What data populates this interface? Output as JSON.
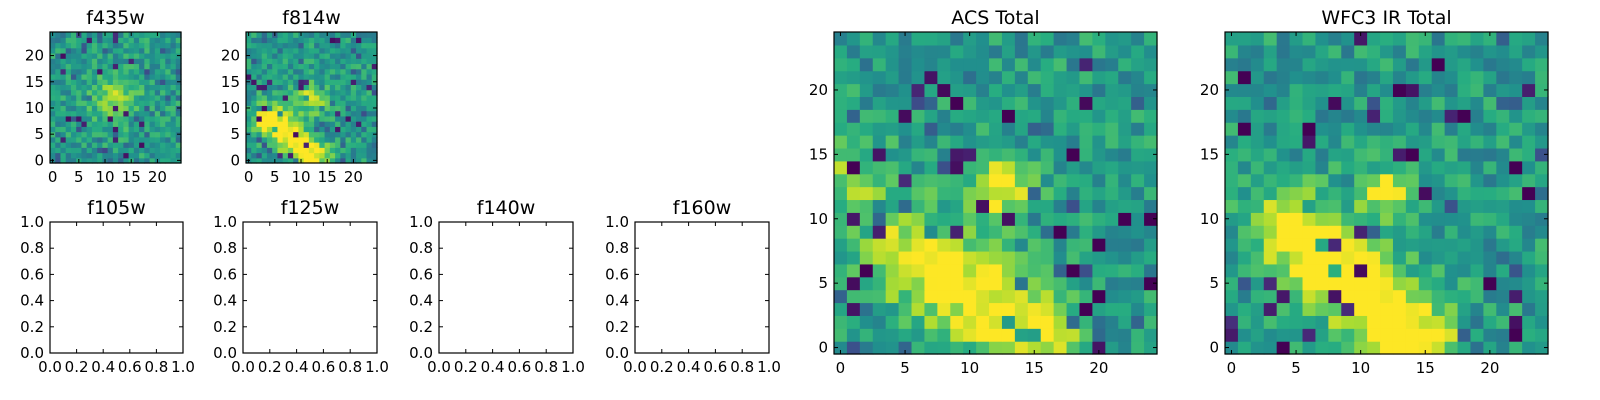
{
  "chart_data": [
    {
      "type": "heatmap",
      "title": "f435w",
      "seed": 11,
      "grid": [
        25,
        25
      ],
      "xlim": [
        -0.5,
        24.5
      ],
      "ylim": [
        -0.5,
        24.5
      ],
      "xticks": [
        0,
        5,
        10,
        15,
        20
      ],
      "yticks": [
        0,
        5,
        10,
        15,
        20
      ],
      "features": [
        {
          "type": "blob",
          "cx": 12,
          "cy": 12,
          "r": 3,
          "amp": 0.3
        }
      ]
    },
    {
      "type": "heatmap",
      "title": "f814w",
      "seed": 23,
      "grid": [
        25,
        25
      ],
      "xlim": [
        -0.5,
        24.5
      ],
      "ylim": [
        -0.5,
        24.5
      ],
      "xticks": [
        0,
        5,
        10,
        15,
        20
      ],
      "yticks": [
        0,
        5,
        10,
        15,
        20
      ],
      "features": [
        {
          "type": "arc",
          "x0": 4,
          "y0": 8,
          "x1": 12,
          "y1": 1,
          "w": 2.2,
          "amp": 0.55
        },
        {
          "type": "blob",
          "cx": 12,
          "cy": 12,
          "r": 2,
          "amp": 0.4
        }
      ]
    },
    {
      "type": "empty",
      "title": "f105w",
      "xlim": [
        0.0,
        1.0
      ],
      "ylim": [
        0.0,
        1.0
      ],
      "xticks": [
        "0.0",
        "0.2",
        "0.4",
        "0.6",
        "0.8",
        "1.0"
      ],
      "yticks": [
        "0.0",
        "0.2",
        "0.4",
        "0.6",
        "0.8",
        "1.0"
      ]
    },
    {
      "type": "empty",
      "title": "f125w",
      "xlim": [
        0.0,
        1.0
      ],
      "ylim": [
        0.0,
        1.0
      ],
      "xticks": [
        "0.0",
        "0.2",
        "0.4",
        "0.6",
        "0.8",
        "1.0"
      ],
      "yticks": [
        "0.0",
        "0.2",
        "0.4",
        "0.6",
        "0.8",
        "1.0"
      ]
    },
    {
      "type": "empty",
      "title": "f140w",
      "xlim": [
        0.0,
        1.0
      ],
      "ylim": [
        0.0,
        1.0
      ],
      "xticks": [
        "0.0",
        "0.2",
        "0.4",
        "0.6",
        "0.8",
        "1.0"
      ],
      "yticks": [
        "0.0",
        "0.2",
        "0.4",
        "0.6",
        "0.8",
        "1.0"
      ]
    },
    {
      "type": "empty",
      "title": "f160w",
      "xlim": [
        0.0,
        1.0
      ],
      "ylim": [
        0.0,
        1.0
      ],
      "xticks": [
        "0.0",
        "0.2",
        "0.4",
        "0.6",
        "0.8",
        "1.0"
      ],
      "yticks": [
        "0.0",
        "0.2",
        "0.4",
        "0.6",
        "0.8",
        "1.0"
      ]
    },
    {
      "type": "heatmap",
      "title": "ACS Total",
      "seed": 37,
      "grid": [
        25,
        25
      ],
      "xlim": [
        -0.5,
        24.5
      ],
      "ylim": [
        -0.5,
        24.5
      ],
      "xticks": [
        0,
        5,
        10,
        15,
        20
      ],
      "yticks": [
        0,
        5,
        10,
        15,
        20
      ],
      "features": [
        {
          "type": "arc",
          "x0": 6,
          "y0": 7,
          "x1": 15,
          "y1": 1,
          "w": 2.6,
          "amp": 0.5
        },
        {
          "type": "blob",
          "cx": 12.5,
          "cy": 12.5,
          "r": 1.6,
          "amp": 0.5
        },
        {
          "type": "blob",
          "cx": 1,
          "cy": 13,
          "r": 2.2,
          "amp": 0.3
        }
      ],
      "dark_cells": [
        [
          9,
          19
        ],
        [
          13,
          18
        ],
        [
          18,
          15
        ],
        [
          17,
          9
        ],
        [
          18,
          6
        ],
        [
          20,
          8
        ],
        [
          22,
          10
        ],
        [
          24,
          10
        ],
        [
          20,
          4
        ],
        [
          19,
          3
        ],
        [
          2,
          6
        ],
        [
          1,
          14
        ],
        [
          24,
          5
        ]
      ]
    },
    {
      "type": "heatmap",
      "title": "WFC3 IR Total",
      "seed": 51,
      "grid": [
        25,
        25
      ],
      "xlim": [
        -0.5,
        24.5
      ],
      "ylim": [
        -0.5,
        24.5
      ],
      "xticks": [
        0,
        5,
        10,
        15,
        20
      ],
      "yticks": [
        0,
        5,
        10,
        15,
        20
      ],
      "features": [
        {
          "type": "arc",
          "x0": 5,
          "y0": 9,
          "x1": 14,
          "y1": 1,
          "w": 2.3,
          "amp": 0.6
        },
        {
          "type": "blob",
          "cx": 12,
          "cy": 12,
          "r": 1.2,
          "amp": 0.5
        }
      ],
      "dark_cells": [
        [
          1,
          21
        ],
        [
          1,
          17
        ],
        [
          6,
          17
        ],
        [
          13,
          20
        ],
        [
          14,
          15
        ],
        [
          22,
          14
        ],
        [
          23,
          12
        ],
        [
          20,
          5
        ],
        [
          4,
          0
        ],
        [
          22,
          1
        ],
        [
          18,
          18
        ],
        [
          16,
          22
        ]
      ]
    }
  ]
}
